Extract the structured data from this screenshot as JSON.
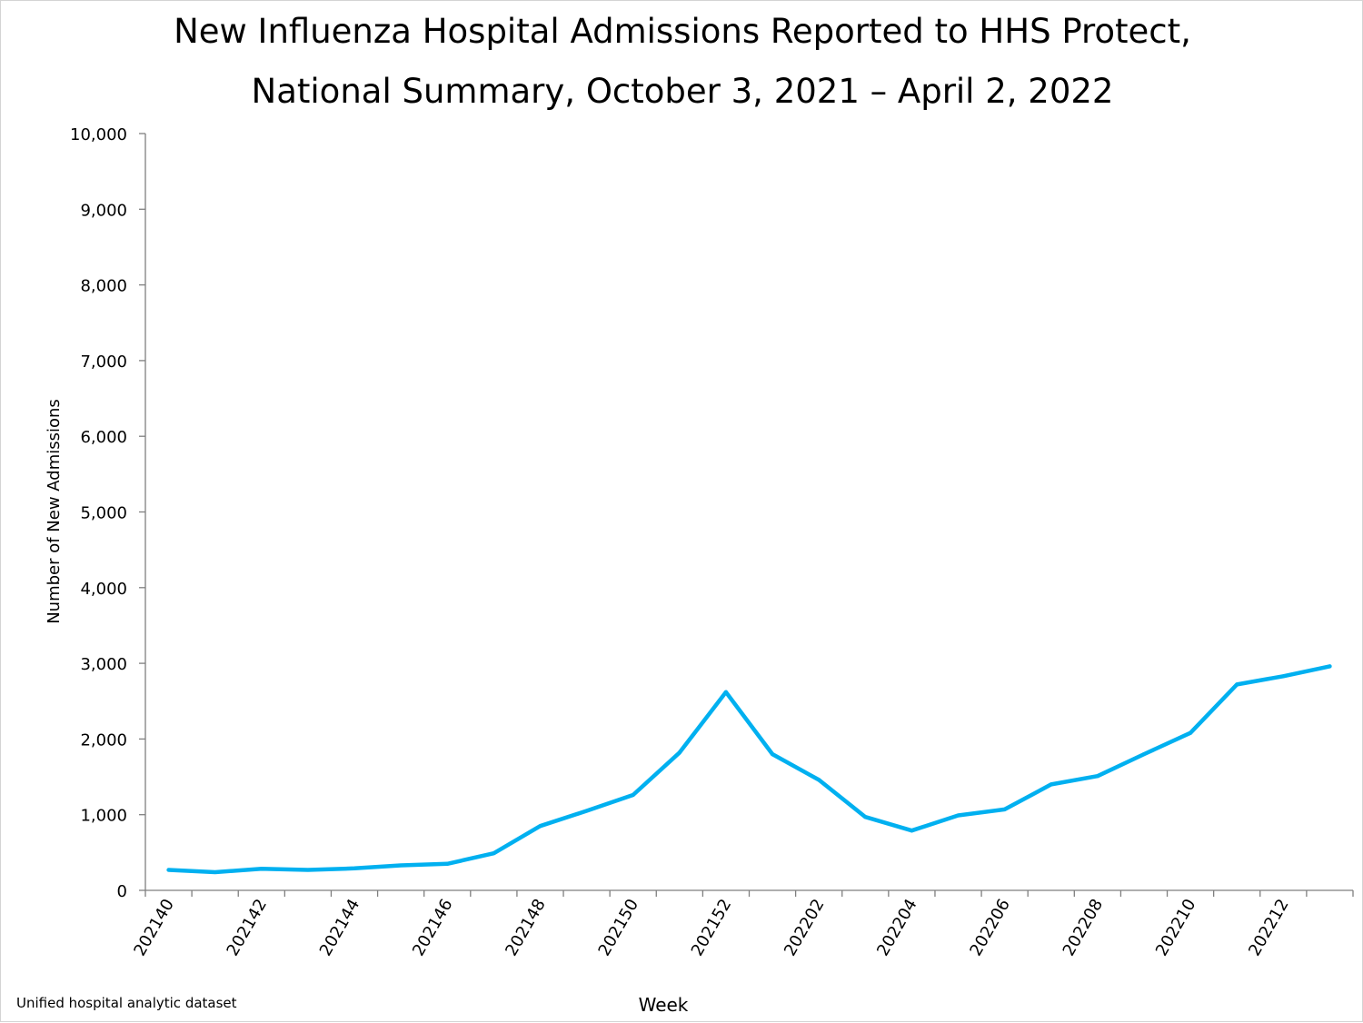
{
  "chart_data": {
    "type": "line",
    "title": "New Influenza Hospital Admissions Reported to HHS Protect,",
    "subtitle": "National Summary, October 3, 2021 – April 2, 2022",
    "xlabel": "Week",
    "ylabel": "Number of New Admissions",
    "ylim": [
      0,
      10000
    ],
    "yticks": [
      0,
      1000,
      2000,
      3000,
      4000,
      5000,
      6000,
      7000,
      8000,
      9000,
      10000
    ],
    "ytick_labels": [
      "0",
      "1,000",
      "2,000",
      "3,000",
      "4,000",
      "5,000",
      "6,000",
      "7,000",
      "8,000",
      "9,000",
      "10,000"
    ],
    "xtick_labels": [
      "202140",
      "202142",
      "202144",
      "202146",
      "202148",
      "202150",
      "202152",
      "202202",
      "202204",
      "202206",
      "202208",
      "202210",
      "202212"
    ],
    "grid": false,
    "legend": "none",
    "line_color": "#00b0f0",
    "series": [
      {
        "x": [
          "202140",
          "202141",
          "202142",
          "202143",
          "202144",
          "202145",
          "202146",
          "202147",
          "202148",
          "202149",
          "202150",
          "202151",
          "202152",
          "202201",
          "202202",
          "202203",
          "202204",
          "202205",
          "202206",
          "202207",
          "202208",
          "202209",
          "202210",
          "202211",
          "202212",
          "202213"
        ],
        "values": [
          270,
          240,
          285,
          270,
          290,
          330,
          350,
          490,
          850,
          1050,
          1260,
          1820,
          2620,
          1800,
          1460,
          970,
          790,
          990,
          1070,
          1400,
          1510,
          1800,
          2080,
          2720,
          2830,
          2960
        ]
      }
    ]
  },
  "footer": {
    "source": "Unified hospital analytic dataset"
  }
}
